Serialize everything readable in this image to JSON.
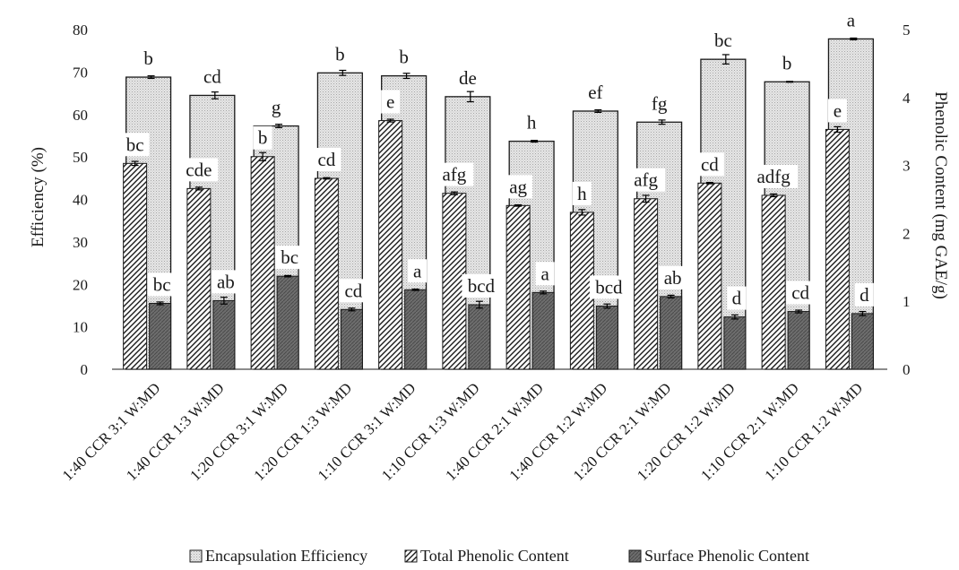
{
  "chart_data": {
    "type": "bar",
    "title": "",
    "ylabel_left": "Efficiency (%)",
    "ylabel_right": "Phenolic Content (mg GAE/g)",
    "ylim_left": [
      0,
      80
    ],
    "ylim_right": [
      0,
      5
    ],
    "yticks_left": [
      "0",
      "10",
      "20",
      "30",
      "40",
      "50",
      "60",
      "70",
      "80"
    ],
    "yticks_right": [
      "0",
      "1",
      "2",
      "3",
      "4",
      "5"
    ],
    "grid": false,
    "legend_position": "bottom",
    "categories": [
      "1:40 CCR 3:1 W:MD",
      "1:40 CCR 1:3 W:MD",
      "1:20 CCR 3:1 W:MD",
      "1:20 CCR 1:3 W:MD",
      "1:10 CCR 3:1 W:MD",
      "1:10 CCR 1:3 W:MD",
      "1:40 CCR 2:1 W:MD",
      "1:40 CCR 1:2 W:MD",
      "1:20 CCR 2:1 W:MD",
      "1:20 CCR 1:2 W:MD",
      "1:10 CCR 2:1 W:MD",
      "1:10 CCR 1:2 W:MD"
    ],
    "series": [
      {
        "name": "Encapsulation Efficiency",
        "axis": "left",
        "values": [
          68.8,
          64.5,
          57.3,
          69.8,
          69.1,
          64.2,
          53.7,
          60.8,
          58.2,
          73.0,
          67.7,
          77.8
        ],
        "errors": [
          0.3,
          0.8,
          0.4,
          0.6,
          0.6,
          1.2,
          0.2,
          0.3,
          0.5,
          1.1,
          0.1,
          0.2
        ],
        "labels": [
          "b",
          "cd",
          "g",
          "b",
          "b",
          "de",
          "h",
          "ef",
          "fg",
          "bc",
          "b",
          "a"
        ],
        "color": "#d9d9d9"
      },
      {
        "name": "Total Phenolic Content",
        "axis": "right",
        "values": [
          3.03,
          2.66,
          3.13,
          2.81,
          3.66,
          2.59,
          2.41,
          2.31,
          2.51,
          2.74,
          2.56,
          3.53
        ],
        "errors": [
          0.03,
          0.02,
          0.06,
          0.01,
          0.02,
          0.02,
          0.01,
          0.04,
          0.05,
          0.01,
          0.02,
          0.04
        ],
        "labels": [
          "bc",
          "cde",
          "b",
          "cd",
          "e",
          "afg",
          "ag",
          "h",
          "afg",
          "cd",
          "adfg",
          "e"
        ],
        "color": "#ffffff"
      },
      {
        "name": "Surface Phenolic Content",
        "axis": "right",
        "values": [
          0.97,
          1.01,
          1.37,
          0.88,
          1.17,
          0.95,
          1.13,
          0.93,
          1.07,
          0.77,
          0.85,
          0.82
        ],
        "errors": [
          0.02,
          0.05,
          0.01,
          0.02,
          0.01,
          0.05,
          0.02,
          0.03,
          0.02,
          0.03,
          0.02,
          0.03
        ],
        "labels": [
          "bc",
          "ab",
          "bc",
          "cd",
          "a",
          "bcd",
          "a",
          "bcd",
          "ab",
          "d",
          "cd",
          "d"
        ],
        "color": "#7f7f7f"
      }
    ]
  }
}
